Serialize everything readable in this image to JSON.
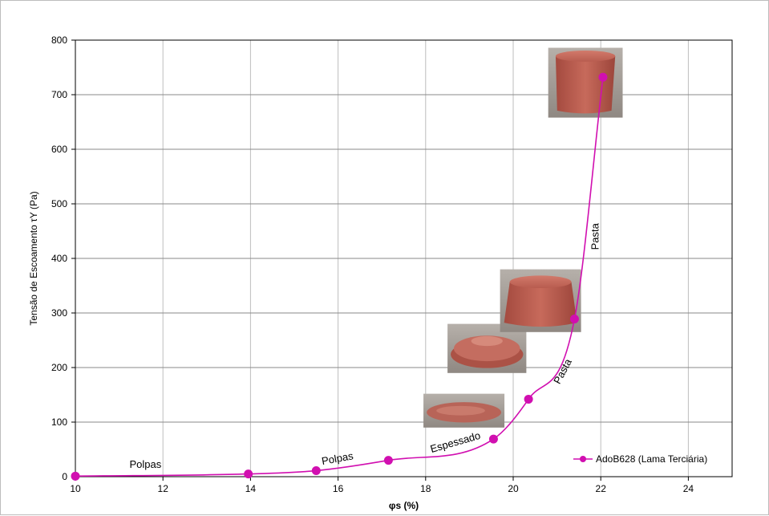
{
  "chart_data": {
    "type": "line",
    "xlabel": "φs (%)",
    "ylabel": "Tensão de Escoamento τY (Pa)",
    "xlim": [
      10,
      25
    ],
    "ylim": [
      0,
      800
    ],
    "x_ticks": [
      "10",
      "12",
      "14",
      "16",
      "18",
      "20",
      "22",
      "24"
    ],
    "y_ticks": [
      "0",
      "100",
      "200",
      "300",
      "400",
      "500",
      "600",
      "700",
      "800"
    ],
    "grid": true,
    "legend_position": "bottom-right",
    "series": [
      {
        "name": "AdoB628 (Lama Terciária)",
        "color": "#d10fb0",
        "x": [
          10.0,
          13.95,
          15.5,
          17.15,
          19.55,
          20.35,
          21.4,
          22.05
        ],
        "y": [
          1,
          5,
          11,
          30,
          69,
          142,
          289,
          732
        ]
      }
    ],
    "annotations": [
      {
        "text": "Polpas",
        "x": 11.6,
        "y": 16,
        "rotation": 0
      },
      {
        "text": "Polpas",
        "x": 16.0,
        "y": 27,
        "rotation": -10
      },
      {
        "text": "Espessado",
        "x": 18.7,
        "y": 57,
        "rotation": -16
      },
      {
        "text": "Pasta",
        "x": 21.2,
        "y": 190,
        "rotation": -62
      },
      {
        "text": "Pasta",
        "x": 21.95,
        "y": 440,
        "rotation": -90
      }
    ],
    "photos": [
      {
        "name": "sample-photo-espessado",
        "x0": 17.95,
        "x1": 19.8,
        "y0": 90,
        "y1": 152
      },
      {
        "name": "sample-photo-pasta-low",
        "x0": 18.5,
        "x1": 20.3,
        "y0": 190,
        "y1": 280
      },
      {
        "name": "sample-photo-pasta-mid",
        "x0": 19.7,
        "x1": 21.55,
        "y0": 265,
        "y1": 380
      },
      {
        "name": "sample-photo-pasta-high",
        "x0": 20.8,
        "x1": 22.5,
        "y0": 658,
        "y1": 786
      }
    ]
  }
}
